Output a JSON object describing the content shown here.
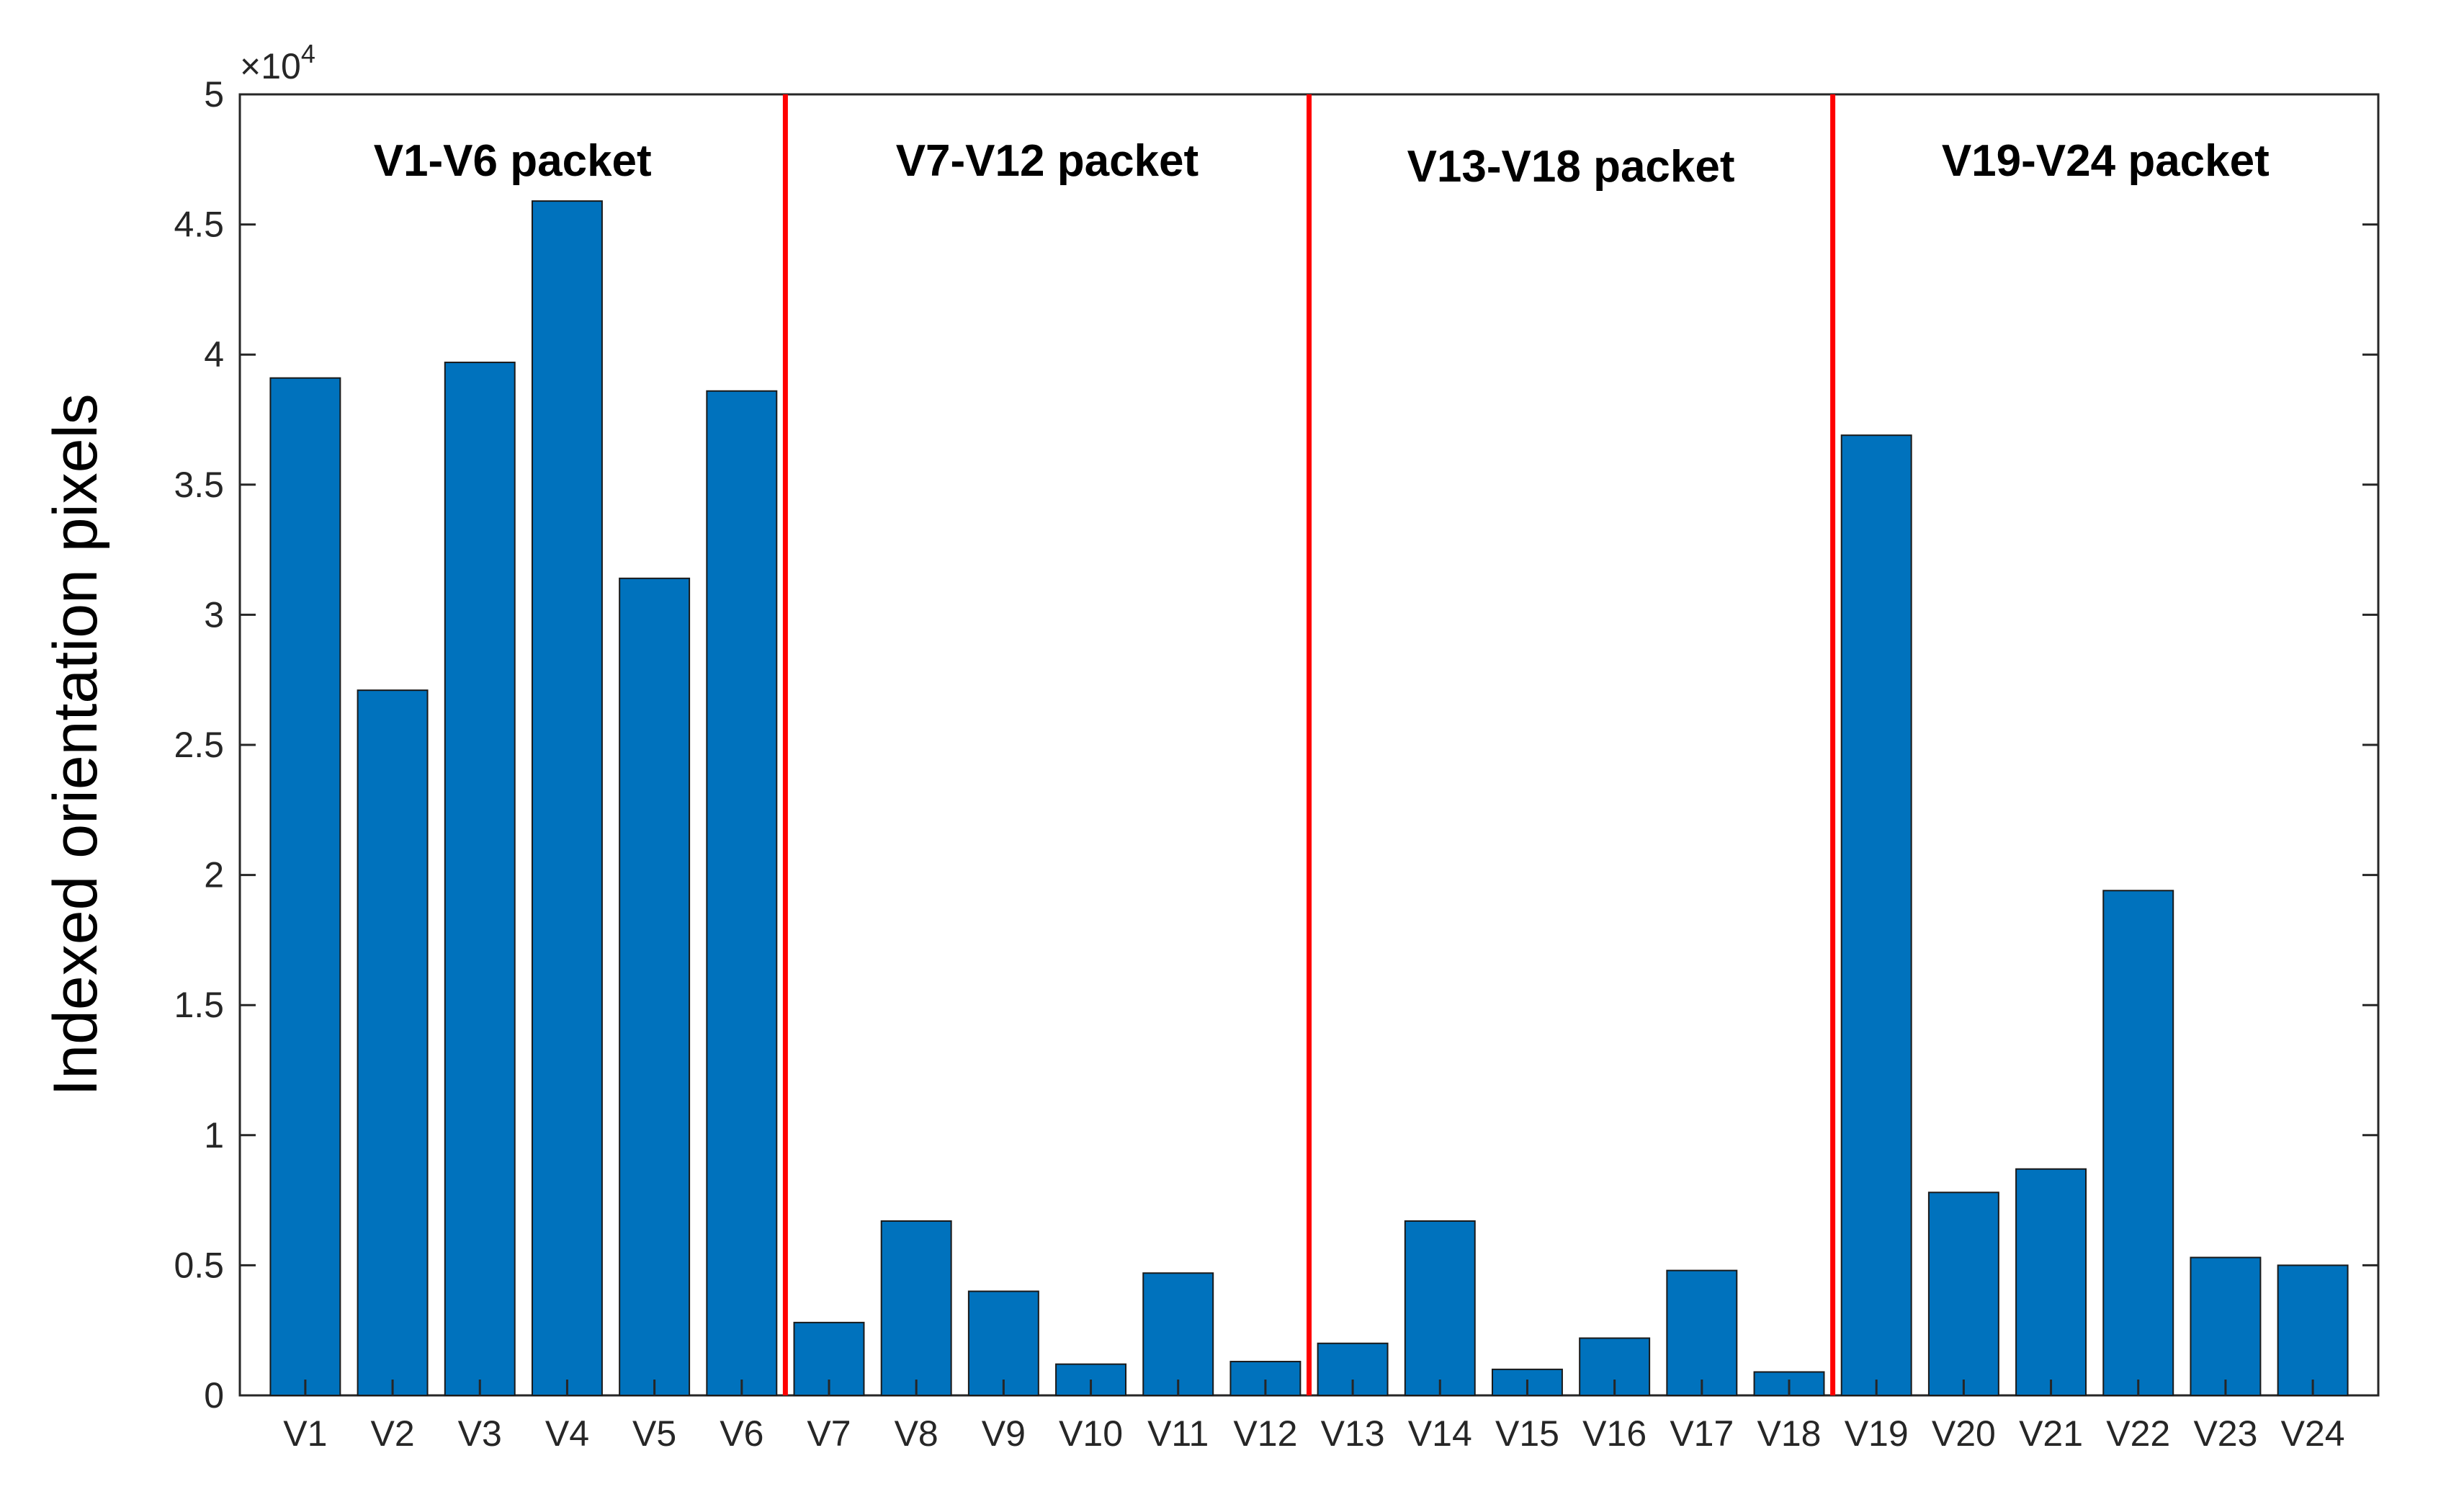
{
  "chart_data": {
    "type": "bar",
    "title": "",
    "xlabel": "",
    "ylabel": "Indexed orientation pixels",
    "y_exponent_base": "×10",
    "y_exponent_power": "4",
    "ylim": [
      0,
      5
    ],
    "yticks": [
      "0",
      "0.5",
      "1",
      "1.5",
      "2",
      "2.5",
      "3",
      "3.5",
      "4",
      "4.5",
      "5"
    ],
    "categories": [
      "V1",
      "V2",
      "V3",
      "V4",
      "V5",
      "V6",
      "V7",
      "V8",
      "V9",
      "V10",
      "V11",
      "V12",
      "V13",
      "V14",
      "V15",
      "V16",
      "V17",
      "V18",
      "V19",
      "V20",
      "V21",
      "V22",
      "V23",
      "V24"
    ],
    "values": [
      3.91,
      2.71,
      3.97,
      4.59,
      3.14,
      3.86,
      0.28,
      0.67,
      0.4,
      0.12,
      0.47,
      0.13,
      0.2,
      0.67,
      0.1,
      0.22,
      0.48,
      0.09,
      3.69,
      0.78,
      0.87,
      1.94,
      0.53,
      0.5
    ],
    "bar_color": "#0072bd",
    "separator_color": "#ff0000",
    "separators_after_category_index": [
      5,
      11,
      17
    ],
    "packets": [
      {
        "label": "V1-V6 packet",
        "start": 0,
        "end": 5
      },
      {
        "label": "V7-V12 packet",
        "start": 6,
        "end": 11
      },
      {
        "label": "V13-V18 packet",
        "start": 12,
        "end": 17
      },
      {
        "label": "V19-V24 packet",
        "start": 18,
        "end": 23
      }
    ],
    "grid": false
  }
}
